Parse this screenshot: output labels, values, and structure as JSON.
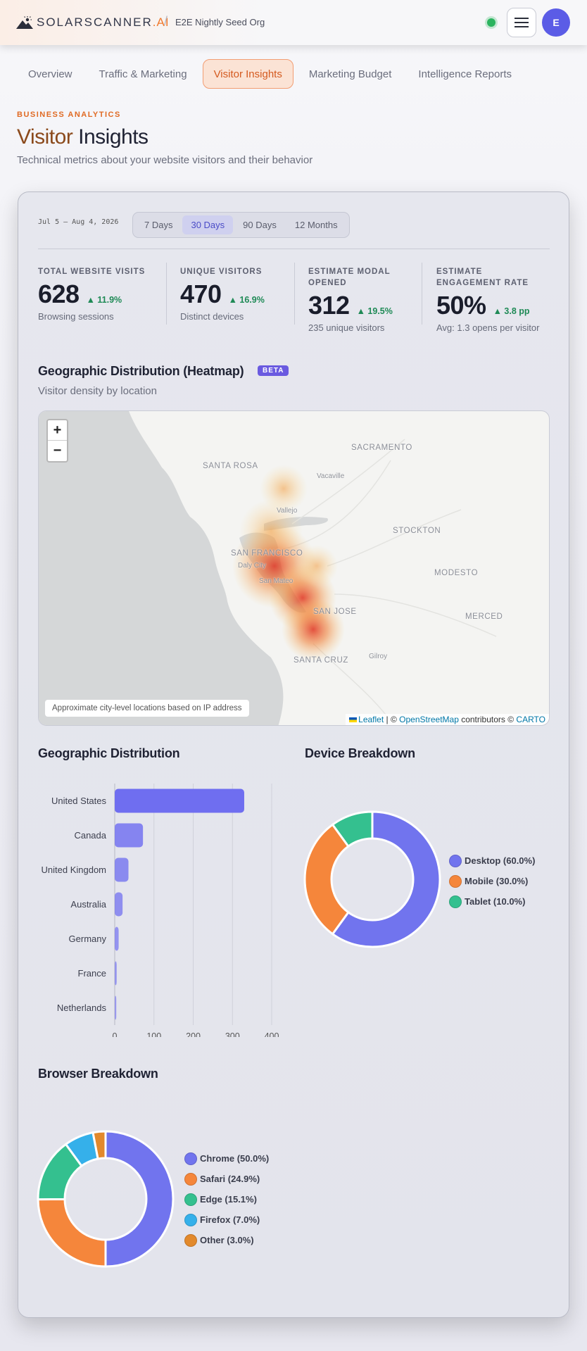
{
  "header": {
    "brand": "SOLARSCANNER",
    "brand_suffix": ".AI",
    "org_name": "E2E Nightly Seed Org",
    "avatar_initial": "E"
  },
  "tabs": [
    {
      "label": "Overview",
      "active": false
    },
    {
      "label": "Traffic & Marketing",
      "active": false
    },
    {
      "label": "Visitor Insights",
      "active": true
    },
    {
      "label": "Marketing Budget",
      "active": false
    },
    {
      "label": "Intelligence Reports",
      "active": false
    }
  ],
  "page": {
    "eyebrow": "BUSINESS ANALYTICS",
    "title_part1": "Visitor",
    "title_part2": " Insights",
    "subtitle": "Technical metrics about your website visitors and their behavior"
  },
  "filters": {
    "date_range": "Jul 5 – Aug 4, 2026",
    "ranges": [
      {
        "label": "7 Days",
        "active": false
      },
      {
        "label": "30 Days",
        "active": true
      },
      {
        "label": "90 Days",
        "active": false
      },
      {
        "label": "12 Months",
        "active": false
      }
    ]
  },
  "stats": [
    {
      "label": "TOTAL WEBSITE VISITS",
      "value": "628",
      "delta": "▲ 11.9%",
      "foot": "Browsing sessions"
    },
    {
      "label": "UNIQUE VISITORS",
      "value": "470",
      "delta": "▲ 16.9%",
      "foot": "Distinct devices"
    },
    {
      "label": "ESTIMATE MODAL OPENED",
      "value": "312",
      "delta": "▲ 19.5%",
      "foot": "235 unique visitors"
    },
    {
      "label": "ESTIMATE ENGAGEMENT RATE",
      "value": "50%",
      "delta": "▲ 3.8 pp",
      "foot": "Avg: 1.3 opens per visitor"
    }
  ],
  "heatmap": {
    "title": "Geographic Distribution (Heatmap)",
    "badge": "BETA",
    "subtitle": "Visitor density by location",
    "zoom_in": "+",
    "zoom_out": "−",
    "note": "Approximate city-level locations based on IP address",
    "attribution": {
      "leaflet": "Leaflet",
      "sep1": " | © ",
      "osm": "OpenStreetMap",
      "mid": " contributors © ",
      "carto": "CARTO"
    },
    "cities": [
      {
        "name": "SACRAMENTO",
        "major": true
      },
      {
        "name": "SANTA ROSA",
        "major": true
      },
      {
        "name": "Vacaville",
        "major": false
      },
      {
        "name": "Vallejo",
        "major": false
      },
      {
        "name": "STOCKTON",
        "major": true
      },
      {
        "name": "SAN FRANCISCO",
        "major": true
      },
      {
        "name": "Daly City",
        "major": false
      },
      {
        "name": "San Mateo",
        "major": false
      },
      {
        "name": "MODESTO",
        "major": true
      },
      {
        "name": "SAN JOSE",
        "major": true
      },
      {
        "name": "MERCED",
        "major": true
      },
      {
        "name": "Gilroy",
        "major": false
      },
      {
        "name": "SANTA CRUZ",
        "major": true
      }
    ]
  },
  "geo_section_title": "Geographic Distribution",
  "device_section_title": "Device Breakdown",
  "browser_section_title": "Browser Breakdown",
  "chart_data": [
    {
      "type": "bar",
      "orientation": "horizontal",
      "categories": [
        "United States",
        "Canada",
        "United Kingdom",
        "Australia",
        "Germany",
        "France",
        "Netherlands"
      ],
      "values": [
        330,
        72,
        35,
        20,
        10,
        5,
        4
      ],
      "xlim": [
        0,
        400
      ],
      "xticks": [
        0,
        100,
        200,
        300,
        400
      ],
      "grid": true,
      "color": "#6f6ef0"
    },
    {
      "type": "pie",
      "donut": true,
      "legend_position": "right",
      "labels": [
        "Desktop (60.0%)",
        "Mobile (30.0%)",
        "Tablet (10.0%)"
      ],
      "values": [
        60.0,
        30.0,
        10.0
      ],
      "colors": [
        "#7174ee",
        "#f5863b",
        "#34c08f"
      ]
    },
    {
      "type": "pie",
      "donut": true,
      "legend_position": "right",
      "labels": [
        "Chrome (50.0%)",
        "Safari (24.9%)",
        "Edge (15.1%)",
        "Firefox (7.0%)",
        "Other (3.0%)"
      ],
      "values": [
        50.0,
        24.9,
        15.1,
        7.0,
        3.0
      ],
      "colors": [
        "#7174ee",
        "#f5863b",
        "#34c08f",
        "#35b0ea",
        "#e2892c"
      ]
    }
  ]
}
